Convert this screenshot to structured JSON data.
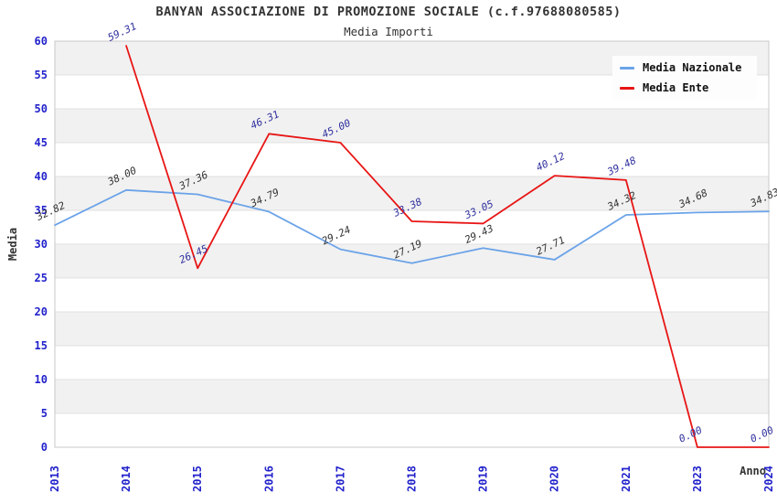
{
  "header": {
    "title": "BANYAN ASSOCIAZIONE DI PROMOZIONE SOCIALE (c.f.97688080585)",
    "subtitle": "Media Importi"
  },
  "chart_data": {
    "type": "line",
    "title": "BANYAN ASSOCIAZIONE DI PROMOZIONE SOCIALE (c.f.97688080585)",
    "subtitle": "Media Importi",
    "xlabel": "Anno",
    "ylabel": "Media",
    "x": [
      "2013",
      "2014",
      "2015",
      "2016",
      "2017",
      "2018",
      "2019",
      "2020",
      "2021",
      "2023",
      "2024"
    ],
    "series": [
      {
        "name": "Media Nazionale",
        "color": "#6ba3e8",
        "label_color": "#333333",
        "values": [
          32.82,
          38.0,
          37.36,
          34.79,
          29.24,
          27.19,
          29.43,
          27.71,
          34.32,
          34.68,
          34.83
        ]
      },
      {
        "name": "Media Ente",
        "color": "#e81515",
        "label_color": "#30309f",
        "values": [
          null,
          59.31,
          26.45,
          46.31,
          45.0,
          33.38,
          33.05,
          40.12,
          39.48,
          0.0,
          0.0
        ]
      }
    ],
    "ylim": [
      0,
      60
    ],
    "ytick_step": 5,
    "yticks": [
      0,
      5,
      10,
      15,
      20,
      25,
      30,
      35,
      40,
      45,
      50,
      55,
      60
    ],
    "grid": "horizontal gridlines with alternating gray bands",
    "legend_position": "top-right",
    "tick_color": "#2222cc",
    "band_color": "#f1f1f1",
    "grid_color": "#e0e0e0",
    "frame_color": "#c9c9c9"
  }
}
